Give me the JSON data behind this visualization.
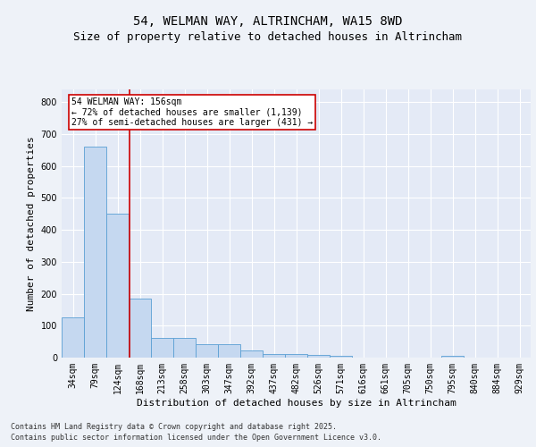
{
  "title1": "54, WELMAN WAY, ALTRINCHAM, WA15 8WD",
  "title2": "Size of property relative to detached houses in Altrincham",
  "xlabel": "Distribution of detached houses by size in Altrincham",
  "ylabel": "Number of detached properties",
  "categories": [
    "34sqm",
    "79sqm",
    "124sqm",
    "168sqm",
    "213sqm",
    "258sqm",
    "303sqm",
    "347sqm",
    "392sqm",
    "437sqm",
    "482sqm",
    "526sqm",
    "571sqm",
    "616sqm",
    "661sqm",
    "705sqm",
    "750sqm",
    "795sqm",
    "840sqm",
    "884sqm",
    "929sqm"
  ],
  "values": [
    125,
    660,
    450,
    185,
    62,
    62,
    42,
    42,
    22,
    12,
    12,
    8,
    5,
    0,
    0,
    0,
    0,
    5,
    0,
    0,
    0
  ],
  "bar_color": "#c5d8f0",
  "bar_edge_color": "#5a9fd4",
  "vline_x": 2.55,
  "vline_color": "#cc0000",
  "annotation_text": "54 WELMAN WAY: 156sqm\n← 72% of detached houses are smaller (1,139)\n27% of semi-detached houses are larger (431) →",
  "annotation_box_color": "#cc0000",
  "background_color": "#eef2f8",
  "plot_bg_color": "#e4eaf6",
  "ylim": [
    0,
    840
  ],
  "yticks": [
    0,
    100,
    200,
    300,
    400,
    500,
    600,
    700,
    800
  ],
  "grid_color": "#ffffff",
  "footer1": "Contains HM Land Registry data © Crown copyright and database right 2025.",
  "footer2": "Contains public sector information licensed under the Open Government Licence v3.0.",
  "title_fontsize": 10,
  "subtitle_fontsize": 9,
  "tick_fontsize": 7,
  "label_fontsize": 8,
  "footer_fontsize": 6
}
